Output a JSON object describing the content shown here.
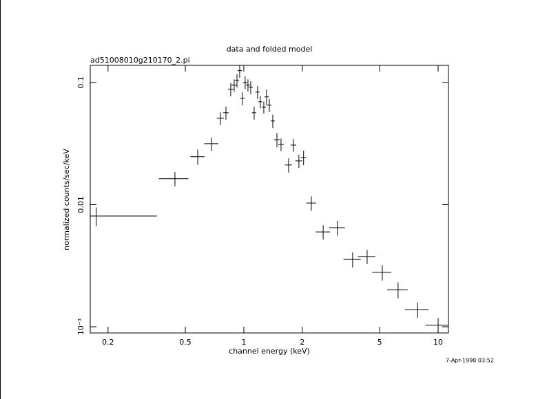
{
  "chart_data": {
    "type": "scatter",
    "title": "data and folded model",
    "subtitle": "ad51008010g210170_2.pi",
    "x_label": "channel energy (keV)",
    "y_label": "normalized counts/sec/keV",
    "timestamp": "7-Apr-1998 03:52",
    "x_log": true,
    "y_log": true,
    "xlim": [
      0.162,
      11.3
    ],
    "ylim": [
      0.00089,
      0.138
    ],
    "xticks": [
      0.2,
      0.5,
      1,
      2,
      5,
      10
    ],
    "yticks": [
      {
        "value": 0.001,
        "label": "10⁻³"
      },
      0.01,
      0.1
    ],
    "series": [
      {
        "color": "#000000",
        "x": [
          0.174,
          0.442,
          0.579,
          0.682,
          0.758,
          0.809,
          0.856,
          0.892,
          0.922,
          0.952,
          0.984,
          1.016,
          1.05,
          1.085,
          1.13,
          1.177,
          1.216,
          1.267,
          1.31,
          1.353,
          1.409,
          1.48,
          1.554,
          1.7,
          1.8,
          1.92,
          2.03,
          2.225,
          2.56,
          3.03,
          3.63,
          4.31,
          5.16,
          6.22,
          7.84,
          10.0
        ],
        "xerr": [
          0.183,
          0.076,
          0.048,
          0.057,
          0.032,
          0.027,
          0.028,
          0.029,
          0.023,
          0.024,
          0.025,
          0.025,
          0.026,
          0.027,
          0.028,
          0.029,
          0.03,
          0.032,
          0.033,
          0.034,
          0.035,
          0.049,
          0.052,
          0.071,
          0.06,
          0.08,
          0.068,
          0.13,
          0.22,
          0.28,
          0.37,
          0.44,
          0.58,
          0.75,
          1.1,
          1.4
        ],
        "values": [
          0.00807,
          0.0163,
          0.0247,
          0.0315,
          0.0509,
          0.0565,
          0.0879,
          0.095,
          0.104,
          0.125,
          0.0741,
          0.1,
          0.095,
          0.0913,
          0.0565,
          0.0834,
          0.0695,
          0.0627,
          0.0762,
          0.0652,
          0.0484,
          0.034,
          0.0311,
          0.0211,
          0.0307,
          0.0228,
          0.0243,
          0.0103,
          0.00598,
          0.00647,
          0.00356,
          0.00376,
          0.00279,
          0.00201,
          0.00138,
          0.00103
        ],
        "yerr": [
          0.0014,
          0.0022,
          0.0035,
          0.004,
          0.006,
          0.007,
          0.011,
          0.011,
          0.013,
          0.016,
          0.009,
          0.012,
          0.011,
          0.011,
          0.007,
          0.01,
          0.008,
          0.007,
          0.011,
          0.008,
          0.006,
          0.0045,
          0.0037,
          0.0028,
          0.0037,
          0.0028,
          0.0033,
          0.0014,
          0.0008,
          0.0009,
          0.0005,
          0.0005,
          0.0004,
          0.0003,
          0.0002,
          0.00015
        ]
      }
    ]
  }
}
